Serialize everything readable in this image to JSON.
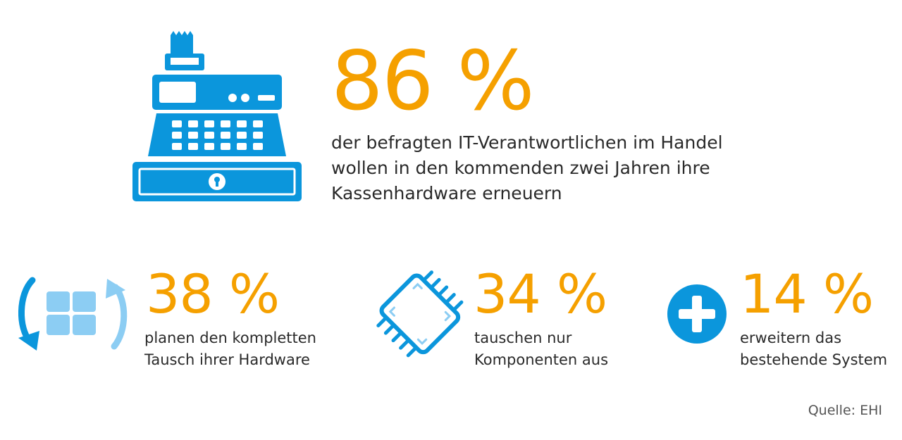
{
  "colors": {
    "accent_orange": "#f5a000",
    "icon_blue": "#0b96dc",
    "icon_light_blue": "#8ccdf3",
    "text": "#2a2a2a"
  },
  "hero": {
    "icon": "cash-register-icon",
    "percent": "86 %",
    "lines": [
      "der befragten IT-Verantwortlichen im Handel",
      "wollen in den kommenden zwei Jahren ihre",
      "Kassenhardware erneuern"
    ]
  },
  "stats": [
    {
      "icon": "hardware-replace-icon",
      "percent": "38 %",
      "lines": [
        "planen den kompletten",
        "Tausch ihrer Hardware"
      ]
    },
    {
      "icon": "chip-component-icon",
      "percent": "34 %",
      "lines": [
        "tauschen nur",
        "Komponenten aus"
      ]
    },
    {
      "icon": "plus-circle-icon",
      "percent": "14 %",
      "lines": [
        "erweitern das",
        "bestehende System"
      ]
    }
  ],
  "source": "Quelle: EHI"
}
